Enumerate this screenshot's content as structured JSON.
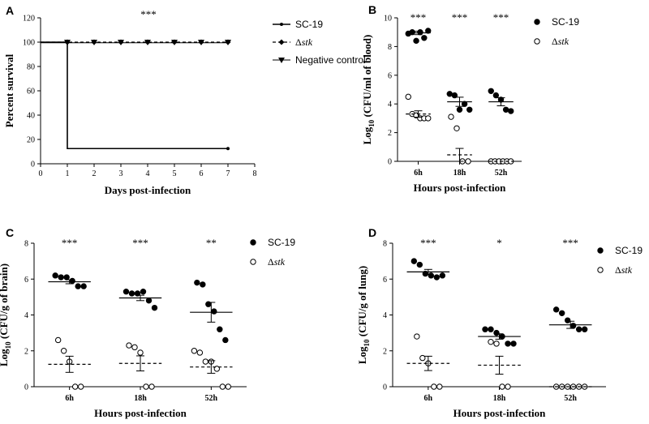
{
  "chart_data": [
    {
      "panel": "A",
      "type": "line",
      "significance": "***",
      "xlabel": "Days post-infection",
      "ylabel": "Percent survival",
      "xlim": [
        0,
        8
      ],
      "ylim": [
        0,
        120
      ],
      "xticks": [
        0,
        1,
        2,
        3,
        4,
        5,
        6,
        7,
        8
      ],
      "yticks": [
        0,
        20,
        40,
        60,
        80,
        100,
        120
      ],
      "series": [
        {
          "name": "SC-19",
          "marker": "circle",
          "step": true,
          "x": [
            0,
            1,
            7
          ],
          "values": [
            100,
            12.5,
            12.5
          ]
        },
        {
          "name": "Δstk",
          "name_prefix": "Δ",
          "name_italic": "stk",
          "marker": "diamond",
          "x": [
            0,
            1,
            2,
            3,
            4,
            5,
            6,
            7
          ],
          "values": [
            100,
            100,
            100,
            100,
            100,
            100,
            100,
            100
          ]
        },
        {
          "name": "Negative control",
          "marker": "triangle-down",
          "x": [
            0,
            1,
            2,
            3,
            4,
            5,
            6,
            7
          ],
          "values": [
            100,
            100,
            100,
            100,
            100,
            100,
            100,
            100
          ]
        }
      ]
    },
    {
      "panel": "B",
      "type": "scatter",
      "xlabel": "Hours post-infection",
      "ylabel_pre": "Log",
      "ylabel_sub": "10",
      "ylabel_post": " (CFU/ml of blood)",
      "categories": [
        "6h",
        "18h",
        "52h"
      ],
      "ylim": [
        0,
        10
      ],
      "yticks": [
        0,
        2,
        4,
        6,
        8,
        10
      ],
      "significance": [
        "***",
        "***",
        "***"
      ],
      "series": [
        {
          "name": "SC-19",
          "filled": true,
          "points": [
            [
              8.9,
              9.0,
              8.4,
              9.0,
              8.6,
              9.1
            ],
            [
              4.7,
              4.6,
              3.6,
              4.0,
              3.6
            ],
            [
              4.9,
              4.6,
              4.3,
              3.6,
              3.5
            ]
          ],
          "mean": [
            8.95,
            4.15,
            4.15
          ],
          "sem": [
            0.12,
            0.32,
            0.28
          ]
        },
        {
          "name": "Δstk",
          "name_prefix": "Δ",
          "name_italic": "stk",
          "filled": false,
          "points": [
            [
              4.5,
              3.3,
              3.2,
              3.0,
              3.0,
              3.0
            ],
            [
              3.1,
              2.3,
              0.0,
              0.0
            ],
            [
              0.0,
              0.0,
              0.0,
              0.0,
              0.0,
              0.0
            ]
          ],
          "mean": [
            3.3,
            0.45,
            0.0
          ],
          "sem": [
            0.22,
            0.45,
            0.0
          ]
        }
      ]
    },
    {
      "panel": "C",
      "type": "scatter",
      "xlabel": "Hours post-infection",
      "ylabel_pre": "Log",
      "ylabel_sub": "10",
      "ylabel_post": " (CFU/g of brain)",
      "categories": [
        "6h",
        "18h",
        "52h"
      ],
      "ylim": [
        0,
        8
      ],
      "yticks": [
        0,
        2,
        4,
        6,
        8
      ],
      "significance": [
        "***",
        "***",
        "**"
      ],
      "series": [
        {
          "name": "SC-19",
          "filled": true,
          "points": [
            [
              6.2,
              6.1,
              6.1,
              5.9,
              5.6,
              5.6
            ],
            [
              5.3,
              5.2,
              5.2,
              5.3,
              4.8,
              4.4
            ],
            [
              5.8,
              5.7,
              4.6,
              4.2,
              3.2,
              2.6
            ]
          ],
          "mean": [
            5.85,
            4.95,
            4.15
          ],
          "sem": [
            0.11,
            0.15,
            0.55
          ]
        },
        {
          "name": "Δstk",
          "name_prefix": "Δ",
          "name_italic": "stk",
          "filled": false,
          "points": [
            [
              2.6,
              2.0,
              1.4,
              0.0,
              0.0
            ],
            [
              2.3,
              2.2,
              1.9,
              0.0,
              0.0
            ],
            [
              2.0,
              1.9,
              1.4,
              1.4,
              1.0,
              0.0,
              0.0
            ]
          ],
          "mean": [
            1.25,
            1.3,
            1.1
          ],
          "sem": [
            0.45,
            0.42,
            0.35
          ]
        }
      ]
    },
    {
      "panel": "D",
      "type": "scatter",
      "xlabel": "Hours post-infection",
      "ylabel_pre": "Log",
      "ylabel_sub": "10",
      "ylabel_post": " (CFU/g of lung)",
      "categories": [
        "6h",
        "18h",
        "52h"
      ],
      "ylim": [
        0,
        8
      ],
      "yticks": [
        0,
        2,
        4,
        6,
        8
      ],
      "significance": [
        "***",
        "*",
        "***"
      ],
      "series": [
        {
          "name": "SC-19",
          "filled": true,
          "points": [
            [
              7.0,
              6.8,
              6.3,
              6.2,
              6.1,
              6.2
            ],
            [
              3.2,
              3.2,
              3.0,
              2.8,
              2.4,
              2.4
            ],
            [
              4.3,
              4.1,
              3.7,
              3.4,
              3.2,
              3.2
            ]
          ],
          "mean": [
            6.4,
            2.8,
            3.45
          ],
          "sem": [
            0.14,
            0.15,
            0.2
          ]
        },
        {
          "name": "Δstk",
          "name_prefix": "Δ",
          "name_italic": "stk",
          "filled": false,
          "points": [
            [
              2.8,
              1.6,
              1.3,
              0.0,
              0.0
            ],
            [
              2.5,
              2.4,
              0.0,
              0.0
            ],
            [
              0.0,
              0.0,
              0.0,
              0.0,
              0.0,
              0.0
            ]
          ],
          "mean": [
            1.3,
            1.2,
            0.0
          ],
          "sem": [
            0.4,
            0.5,
            0.0
          ]
        }
      ]
    }
  ]
}
